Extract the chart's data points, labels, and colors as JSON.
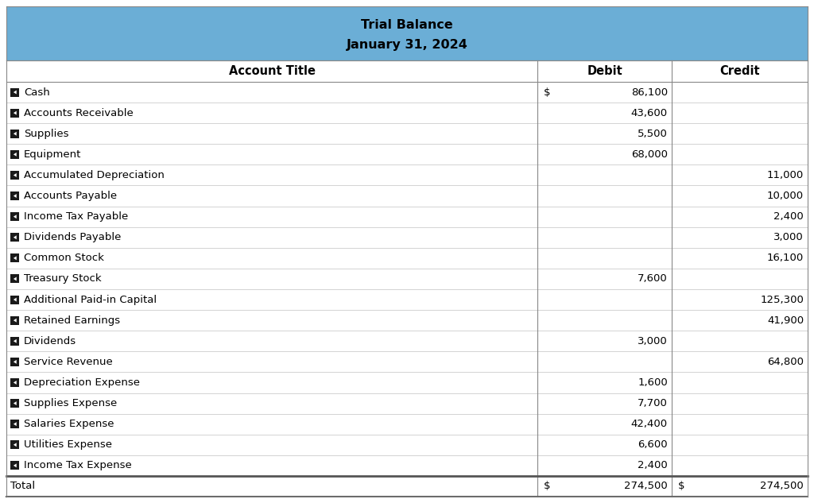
{
  "title_line1": "Trial Balance",
  "title_line2": "January 31, 2024",
  "header_bg": "#6baed6",
  "header_text_color": "#000000",
  "col_headers": [
    "Account Title",
    "Debit",
    "Credit"
  ],
  "rows": [
    {
      "account": "Cash",
      "debit": "86,100",
      "credit": "",
      "dollar_debit": true
    },
    {
      "account": "Accounts Receivable",
      "debit": "43,600",
      "credit": "",
      "dollar_debit": false
    },
    {
      "account": "Supplies",
      "debit": "5,500",
      "credit": "",
      "dollar_debit": false
    },
    {
      "account": "Equipment",
      "debit": "68,000",
      "credit": "",
      "dollar_debit": false
    },
    {
      "account": "Accumulated Depreciation",
      "debit": "",
      "credit": "11,000",
      "dollar_debit": false
    },
    {
      "account": "Accounts Payable",
      "debit": "",
      "credit": "10,000",
      "dollar_debit": false
    },
    {
      "account": "Income Tax Payable",
      "debit": "",
      "credit": "2,400",
      "dollar_debit": false
    },
    {
      "account": "Dividends Payable",
      "debit": "",
      "credit": "3,000",
      "dollar_debit": false
    },
    {
      "account": "Common Stock",
      "debit": "",
      "credit": "16,100",
      "dollar_debit": false
    },
    {
      "account": "Treasury Stock",
      "debit": "7,600",
      "credit": "",
      "dollar_debit": false
    },
    {
      "account": "Additional Paid-in Capital",
      "debit": "",
      "credit": "125,300",
      "dollar_debit": false
    },
    {
      "account": "Retained Earnings",
      "debit": "",
      "credit": "41,900",
      "dollar_debit": false
    },
    {
      "account": "Dividends",
      "debit": "3,000",
      "credit": "",
      "dollar_debit": false
    },
    {
      "account": "Service Revenue",
      "debit": "",
      "credit": "64,800",
      "dollar_debit": false
    },
    {
      "account": "Depreciation Expense",
      "debit": "1,600",
      "credit": "",
      "dollar_debit": false
    },
    {
      "account": "Supplies Expense",
      "debit": "7,700",
      "credit": "",
      "dollar_debit": false
    },
    {
      "account": "Salaries Expense",
      "debit": "42,400",
      "credit": "",
      "dollar_debit": false
    },
    {
      "account": "Utilities Expense",
      "debit": "6,600",
      "credit": "",
      "dollar_debit": false
    },
    {
      "account": "Income Tax Expense",
      "debit": "2,400",
      "credit": "",
      "dollar_debit": false
    }
  ],
  "total_row": {
    "account": "Total",
    "debit": "274,500",
    "credit": "274,500"
  },
  "border_color": "#aaaaaa",
  "text_color": "#000000",
  "font_size": 9.5,
  "header_font_size": 11.5,
  "col_header_font_size": 10.5
}
